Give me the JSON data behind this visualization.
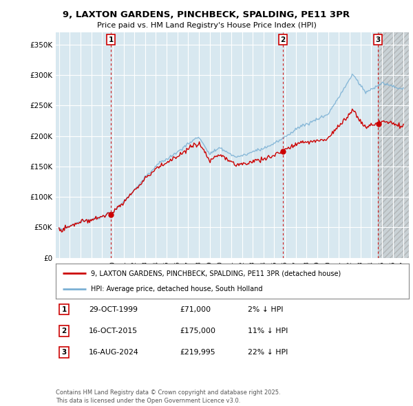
{
  "title": "9, LAXTON GARDENS, PINCHBECK, SPALDING, PE11 3PR",
  "subtitle": "Price paid vs. HM Land Registry's House Price Index (HPI)",
  "ylabel_ticks": [
    "£0",
    "£50K",
    "£100K",
    "£150K",
    "£200K",
    "£250K",
    "£300K",
    "£350K"
  ],
  "ytick_values": [
    0,
    50000,
    100000,
    150000,
    200000,
    250000,
    300000,
    350000
  ],
  "ylim": [
    0,
    370000
  ],
  "xlim_start": 1994.7,
  "xlim_end": 2027.5,
  "sale1": {
    "date": 1999.83,
    "price": 71000,
    "label": "1",
    "date_str": "29-OCT-1999",
    "pct": "2%"
  },
  "sale2": {
    "date": 2015.79,
    "price": 175000,
    "label": "2",
    "date_str": "16-OCT-2015",
    "pct": "11%"
  },
  "sale3": {
    "date": 2024.62,
    "price": 219995,
    "label": "3",
    "date_str": "16-AUG-2024",
    "pct": "22%"
  },
  "line_color_red": "#cc0000",
  "line_color_blue": "#7ab0d4",
  "vline_color": "#cc0000",
  "grid_color": "#ffffff",
  "bg_color": "#ffffff",
  "plot_bg_color": "#d8e8f0",
  "future_bg_color": "#cccccc",
  "legend1": "9, LAXTON GARDENS, PINCHBECK, SPALDING, PE11 3PR (detached house)",
  "legend2": "HPI: Average price, detached house, South Holland",
  "footer": "Contains HM Land Registry data © Crown copyright and database right 2025.\nThis data is licensed under the Open Government Licence v3.0.",
  "table_rows": [
    [
      "1",
      "29-OCT-1999",
      "£71,000",
      "2% ↓ HPI"
    ],
    [
      "2",
      "16-OCT-2015",
      "£175,000",
      "11% ↓ HPI"
    ],
    [
      "3",
      "16-AUG-2024",
      "£219,995",
      "22% ↓ HPI"
    ]
  ]
}
